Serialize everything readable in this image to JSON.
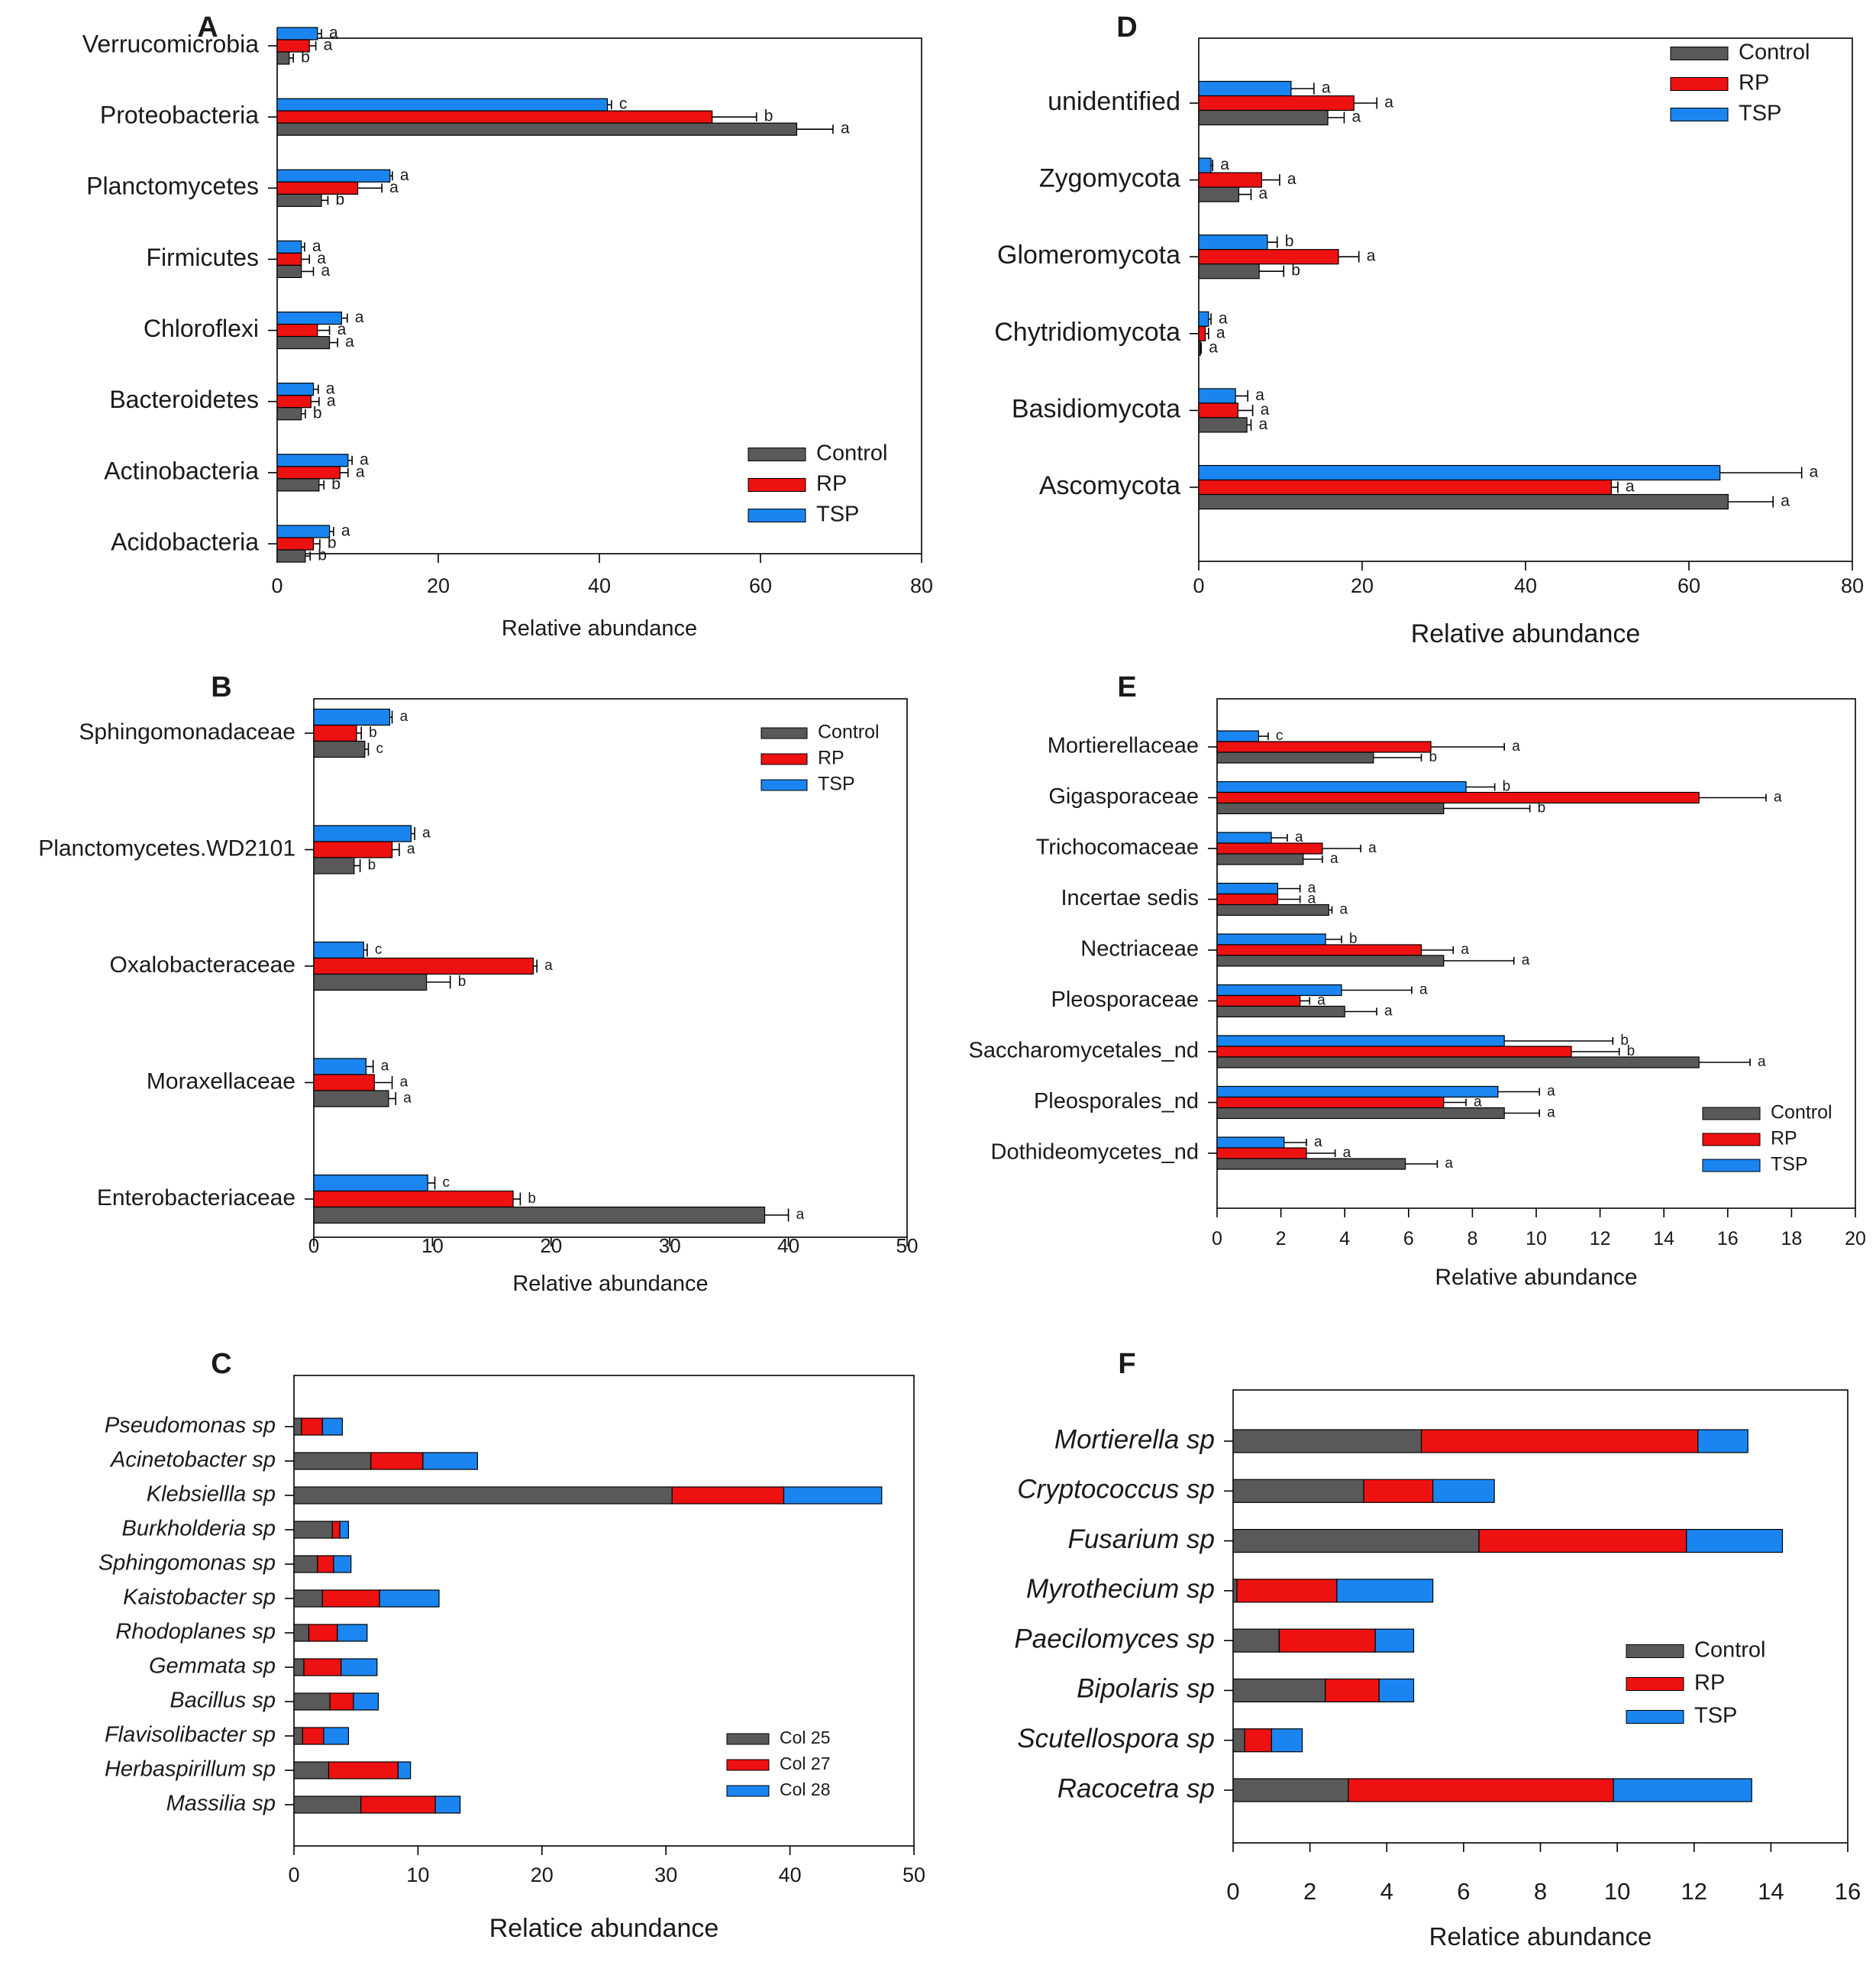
{
  "colors": {
    "control": "#595959",
    "rp": "#ee1111",
    "tsp": "#1a85f0"
  },
  "chart_data": [
    {
      "panel": "A",
      "type": "bar",
      "orientation": "horizontal",
      "xlabel": "Relative abundance",
      "xlim": [
        0,
        80
      ],
      "xticks": [
        0,
        20,
        40,
        60,
        80
      ],
      "legend": [
        "Control",
        "RP",
        "TSP"
      ],
      "legend_position": "bottom-right",
      "categories": [
        "Verrucomicrobia",
        "Proteobacteria",
        "Planctomycetes",
        "Firmicutes",
        "Chloroflexi",
        "Bacteroidetes",
        "Actinobacteria",
        "Acidobacteria"
      ],
      "series": [
        {
          "name": "Control",
          "values": [
            1.5,
            64.5,
            5.5,
            3.0,
            6.5,
            3.0,
            5.2,
            3.5
          ],
          "errors": [
            0.5,
            4.5,
            0.8,
            1.5,
            1.0,
            0.5,
            0.6,
            0.6
          ],
          "letters": [
            "b",
            "a",
            "b",
            "a",
            "a",
            "b",
            "b",
            "b"
          ]
        },
        {
          "name": "RP",
          "values": [
            4.0,
            54.0,
            10.0,
            3.0,
            5.0,
            4.2,
            7.8,
            4.5
          ],
          "errors": [
            0.8,
            5.5,
            3.0,
            1.0,
            1.5,
            1.0,
            1.0,
            0.8
          ],
          "letters": [
            "a",
            "b",
            "a",
            "a",
            "a",
            "a",
            "a",
            "b"
          ]
        },
        {
          "name": "TSP",
          "values": [
            5.0,
            41.0,
            14.0,
            3.0,
            8.0,
            4.5,
            8.8,
            6.5
          ],
          "errors": [
            0.5,
            0.5,
            0.3,
            0.4,
            0.7,
            0.6,
            0.5,
            0.5
          ],
          "letters": [
            "a",
            "c",
            "a",
            "a",
            "a",
            "a",
            "a",
            "a"
          ]
        }
      ]
    },
    {
      "panel": "B",
      "type": "bar",
      "orientation": "horizontal",
      "xlabel": "Relative abundance",
      "xlim": [
        0,
        50
      ],
      "xticks": [
        0,
        10,
        20,
        30,
        40,
        50
      ],
      "legend": [
        "Control",
        "RP",
        "TSP"
      ],
      "legend_position": "top-right",
      "categories": [
        "Sphingomonadaceae",
        "Planctomycetes.WD2101",
        "Oxalobacteraceae",
        "Moraxellaceae",
        "Enterobacteriaceae"
      ],
      "series": [
        {
          "name": "Control",
          "values": [
            4.3,
            3.4,
            9.5,
            6.3,
            38.0
          ],
          "errors": [
            0.3,
            0.5,
            2.0,
            0.6,
            2.0
          ],
          "letters": [
            "c",
            "b",
            "b",
            "a",
            "a"
          ]
        },
        {
          "name": "RP",
          "values": [
            3.6,
            6.6,
            18.5,
            5.1,
            16.8
          ],
          "errors": [
            0.4,
            0.6,
            0.3,
            1.5,
            0.6
          ],
          "letters": [
            "b",
            "a",
            "a",
            "a",
            "b"
          ]
        },
        {
          "name": "TSP",
          "values": [
            6.4,
            8.2,
            4.2,
            4.4,
            9.6
          ],
          "errors": [
            0.2,
            0.3,
            0.3,
            0.6,
            0.6
          ],
          "letters": [
            "a",
            "a",
            "c",
            "a",
            "c"
          ]
        }
      ]
    },
    {
      "panel": "C",
      "type": "bar",
      "orientation": "horizontal",
      "stacked": true,
      "xlabel": "Relatice abundance",
      "xlim": [
        0,
        50
      ],
      "xticks": [
        0,
        10,
        20,
        30,
        40,
        50
      ],
      "legend": [
        "Col 25",
        "Col 27",
        "Col 28"
      ],
      "legend_position": "bottom-right",
      "categories": [
        "Pseudomonas sp",
        "Acinetobacter sp",
        "Klebsiellla sp",
        "Burkholderia sp",
        "Sphingomonas sp",
        "Kaistobacter sp",
        "Rhodoplanes sp",
        "Gemmata sp",
        "Bacillus sp",
        "Flavisolibacter sp",
        "Herbaspirillum sp",
        "Massilia sp"
      ],
      "series": [
        {
          "name": "Col 25",
          "values": [
            0.6,
            6.2,
            30.5,
            3.1,
            1.9,
            2.3,
            1.2,
            0.8,
            2.9,
            0.7,
            2.8,
            5.4
          ]
        },
        {
          "name": "Col 27",
          "values": [
            1.7,
            4.2,
            9.0,
            0.6,
            1.3,
            4.6,
            2.3,
            3.0,
            1.9,
            1.7,
            5.6,
            6.0
          ]
        },
        {
          "name": "Col 28",
          "values": [
            1.6,
            4.4,
            7.9,
            0.7,
            1.4,
            4.8,
            2.4,
            2.9,
            2.0,
            2.0,
            1.0,
            2.0
          ]
        }
      ]
    },
    {
      "panel": "D",
      "type": "bar",
      "orientation": "horizontal",
      "xlabel": "Relative abundance",
      "xlim": [
        0,
        80
      ],
      "xticks": [
        0,
        20,
        40,
        60,
        80
      ],
      "legend": [
        "Control",
        "RP",
        "TSP"
      ],
      "legend_position": "top-right",
      "categories": [
        "unidentified",
        "Zygomycota",
        "Glomeromycota",
        "Chytridiomycota",
        "Basidiomycota",
        "Ascomycota"
      ],
      "series": [
        {
          "name": "Control",
          "values": [
            15.8,
            4.9,
            7.4,
            0.2,
            5.9,
            64.8
          ],
          "errors": [
            2.0,
            1.5,
            3.0,
            0.1,
            0.5,
            5.5
          ],
          "letters": [
            "a",
            "a",
            "b",
            "a",
            "a",
            "a"
          ]
        },
        {
          "name": "RP",
          "values": [
            19.0,
            7.7,
            17.1,
            0.8,
            4.8,
            50.5
          ],
          "errors": [
            2.8,
            2.2,
            2.5,
            0.4,
            1.8,
            0.8
          ],
          "letters": [
            "a",
            "a",
            "a",
            "a",
            "a",
            "a"
          ]
        },
        {
          "name": "TSP",
          "values": [
            11.3,
            1.5,
            8.4,
            1.2,
            4.5,
            63.8
          ],
          "errors": [
            2.8,
            0.2,
            1.2,
            0.3,
            1.5,
            10.0
          ],
          "letters": [
            "a",
            "a",
            "b",
            "a",
            "a",
            "a"
          ]
        }
      ]
    },
    {
      "panel": "E",
      "type": "bar",
      "orientation": "horizontal",
      "xlabel": "Relative abundance",
      "xlim": [
        0,
        20
      ],
      "xticks": [
        0,
        2,
        4,
        6,
        8,
        10,
        12,
        14,
        16,
        18,
        20
      ],
      "legend": [
        "Control",
        "RP",
        "TSP"
      ],
      "legend_position": "bottom-right",
      "categories": [
        "Mortierellaceae",
        "Gigasporaceae",
        "Trichocomaceae",
        "Incertae sedis",
        "Nectriaceae",
        "Pleosporaceae",
        "Saccharomycetales_nd",
        "Pleosporales_nd",
        "Dothideomycetes_nd"
      ],
      "series": [
        {
          "name": "Control",
          "values": [
            4.9,
            7.1,
            2.7,
            3.5,
            7.1,
            4.0,
            15.1,
            9.0,
            5.9
          ],
          "errors": [
            1.5,
            2.7,
            0.6,
            0.1,
            2.2,
            1.0,
            1.6,
            1.1,
            1.0
          ],
          "letters": [
            "b",
            "b",
            "a",
            "a",
            "a",
            "a",
            "a",
            "a",
            "a"
          ]
        },
        {
          "name": "RP",
          "values": [
            6.7,
            15.1,
            3.3,
            1.9,
            6.4,
            2.6,
            11.1,
            7.1,
            2.8
          ],
          "errors": [
            2.3,
            2.1,
            1.2,
            0.7,
            1.0,
            0.3,
            1.5,
            0.7,
            0.9
          ],
          "letters": [
            "a",
            "a",
            "a",
            "a",
            "a",
            "a",
            "b",
            "a",
            "a"
          ]
        },
        {
          "name": "TSP",
          "values": [
            1.3,
            7.8,
            1.7,
            1.9,
            3.4,
            3.9,
            9.0,
            8.8,
            2.1
          ],
          "errors": [
            0.3,
            0.9,
            0.5,
            0.7,
            0.5,
            2.2,
            3.4,
            1.3,
            0.7
          ],
          "letters": [
            "c",
            "b",
            "a",
            "a",
            "b",
            "a",
            "b",
            "a",
            "a"
          ]
        }
      ]
    },
    {
      "panel": "F",
      "type": "bar",
      "orientation": "horizontal",
      "stacked": true,
      "xlabel": "Relatice abundance",
      "xlim": [
        0,
        16
      ],
      "xticks": [
        0,
        2,
        4,
        6,
        8,
        10,
        12,
        14,
        16
      ],
      "legend": [
        "Control",
        "RP",
        "TSP"
      ],
      "legend_position": "right",
      "categories": [
        "Mortierella  sp",
        "Cryptococcus  sp",
        "Fusarium  sp",
        "Myrothecium  sp",
        "Paecilomyces  sp",
        "Bipolaris sp",
        "Scutellospora sp",
        "Racocetra sp"
      ],
      "series": [
        {
          "name": "Control",
          "values": [
            4.9,
            3.4,
            6.4,
            0.1,
            1.2,
            2.4,
            0.3,
            3.0
          ]
        },
        {
          "name": "RP",
          "values": [
            7.2,
            1.8,
            5.4,
            2.6,
            2.5,
            1.4,
            0.7,
            6.9
          ]
        },
        {
          "name": "TSP",
          "values": [
            1.3,
            1.6,
            2.5,
            2.5,
            1.0,
            0.9,
            0.8,
            3.6
          ]
        }
      ]
    }
  ]
}
